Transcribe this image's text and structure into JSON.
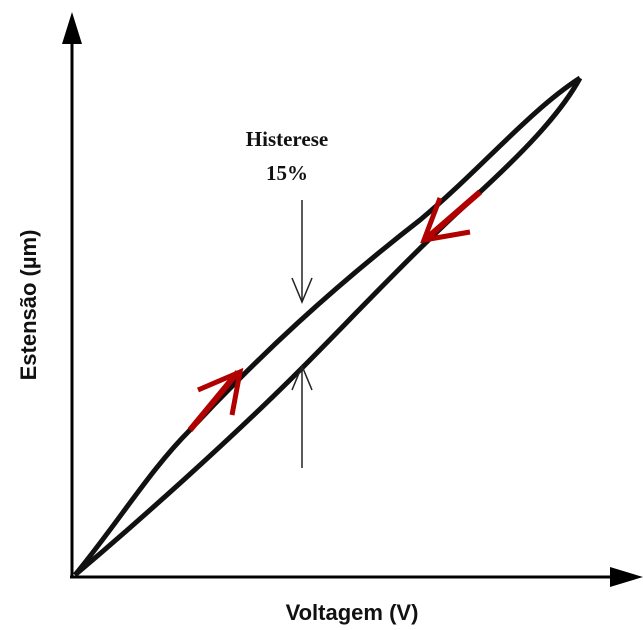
{
  "axes": {
    "x_label": "Voltagem (V)",
    "y_label": "Estensão (µm)"
  },
  "annotation": {
    "title": "Histerese",
    "value": "15%"
  }
}
